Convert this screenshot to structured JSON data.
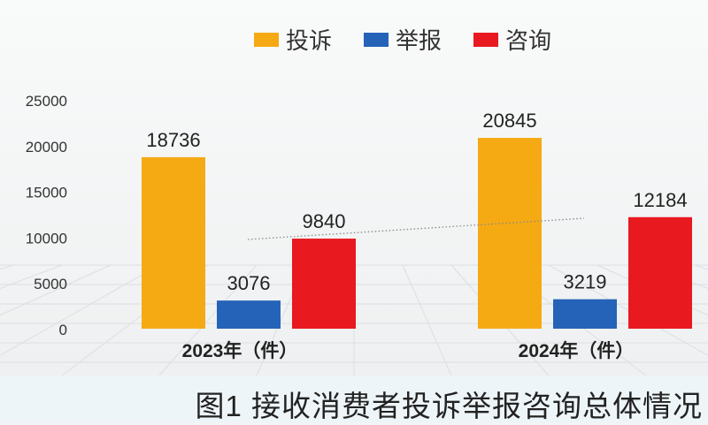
{
  "chart_data": {
    "type": "bar",
    "title": "图1 接收消费者投诉举报咨询总体情况",
    "categories": [
      "2023年（件）",
      "2024年（件）"
    ],
    "series": [
      {
        "name": "投诉",
        "color": "#f5aa14",
        "values": [
          18736,
          20845
        ]
      },
      {
        "name": "举报",
        "color": "#2563b8",
        "values": [
          3076,
          3219
        ]
      },
      {
        "name": "咨询",
        "color": "#e8191f",
        "values": [
          9840,
          12184
        ]
      }
    ],
    "yticks": [
      0,
      5000,
      10000,
      15000,
      20000,
      25000
    ],
    "ylim": [
      0,
      25000
    ],
    "xlabel": "",
    "ylabel": "",
    "legend": "top-center",
    "grid": false
  }
}
